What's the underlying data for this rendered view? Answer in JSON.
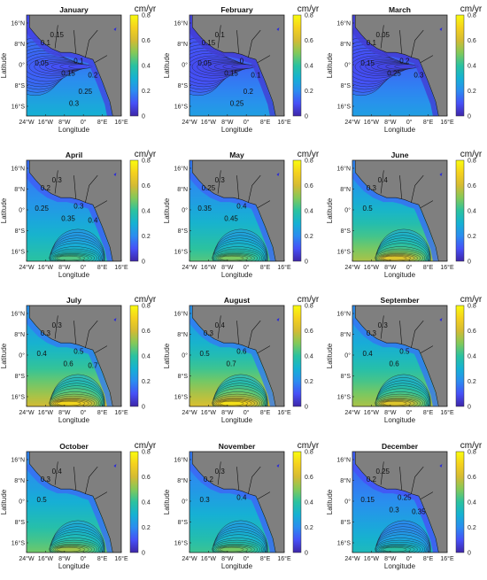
{
  "figure": {
    "colorbar_unit": "cm/yr",
    "colorbar_ticks": [
      "0",
      "0.2",
      "0.4",
      "0.6",
      "0.8"
    ],
    "colorbar_range": [
      0,
      0.8
    ],
    "colormap": [
      "#3e26a8",
      "#4650f7",
      "#2b8cf0",
      "#15b1d3",
      "#2ac2a0",
      "#82c95a",
      "#d4bb33",
      "#f5d11e",
      "#f9fb0e"
    ],
    "land_color": "#7f7f7f",
    "x_ticks": [
      "24°W",
      "16°W",
      "8°W",
      "0°",
      "8°E",
      "16°E"
    ],
    "y_ticks": [
      "16°N",
      "8°N",
      "0°",
      "8°S",
      "16°S"
    ],
    "xlabel": "Longitude",
    "ylabel": "Latitude"
  },
  "chart_data": [
    {
      "type": "heatmap",
      "title": "January",
      "mean_level": 0.16,
      "south_level": 0.3,
      "max_level": 0.35,
      "contour_labels": [
        "0.1",
        "0.15",
        "0.05",
        "0.1",
        "0.15",
        "0.2",
        "0.25",
        "0.3"
      ]
    },
    {
      "type": "heatmap",
      "title": "February",
      "mean_level": 0.12,
      "south_level": 0.25,
      "max_level": 0.3,
      "contour_labels": [
        "0.15",
        "0.1",
        "0.05",
        "0",
        "0.15",
        "0.1",
        "0.2",
        "0.25"
      ]
    },
    {
      "type": "heatmap",
      "title": "March",
      "mean_level": 0.12,
      "south_level": 0.25,
      "max_level": 0.3,
      "contour_labels": [
        "0.1",
        "0.05",
        "0.15",
        "0.2",
        "0.25",
        "0.3"
      ]
    },
    {
      "type": "heatmap",
      "title": "April",
      "mean_level": 0.27,
      "south_level": 0.4,
      "max_level": 0.45,
      "contour_labels": [
        "0.2",
        "0.3",
        "0.25",
        "0.3",
        "0.35",
        "0.4"
      ]
    },
    {
      "type": "heatmap",
      "title": "May",
      "mean_level": 0.3,
      "south_level": 0.45,
      "max_level": 0.5,
      "contour_labels": [
        "0.25",
        "0.3",
        "0.35",
        "0.4",
        "0.45"
      ]
    },
    {
      "type": "heatmap",
      "title": "June",
      "mean_level": 0.33,
      "south_level": 0.55,
      "max_level": 0.65,
      "contour_labels": [
        "0.3",
        "0.4",
        "0.5"
      ]
    },
    {
      "type": "heatmap",
      "title": "July",
      "mean_level": 0.38,
      "south_level": 0.6,
      "max_level": 0.72,
      "contour_labels": [
        "0.3",
        "0.3",
        "0.4",
        "0.5",
        "0.6",
        "0.7"
      ]
    },
    {
      "type": "heatmap",
      "title": "August",
      "mean_level": 0.38,
      "south_level": 0.62,
      "max_level": 0.75,
      "contour_labels": [
        "0.3",
        "0.4",
        "0.5",
        "0.6",
        "0.7"
      ]
    },
    {
      "type": "heatmap",
      "title": "September",
      "mean_level": 0.36,
      "south_level": 0.55,
      "max_level": 0.65,
      "contour_labels": [
        "0.3",
        "0.3",
        "0.4",
        "0.5",
        "0.6"
      ]
    },
    {
      "type": "heatmap",
      "title": "October",
      "mean_level": 0.33,
      "south_level": 0.48,
      "max_level": 0.55,
      "contour_labels": [
        "0.3",
        "0.4",
        "0.5"
      ]
    },
    {
      "type": "heatmap",
      "title": "November",
      "mean_level": 0.3,
      "south_level": 0.42,
      "max_level": 0.5,
      "contour_labels": [
        "0.2",
        "0.3",
        "0.3",
        "0.4"
      ]
    },
    {
      "type": "heatmap",
      "title": "December",
      "mean_level": 0.22,
      "south_level": 0.35,
      "max_level": 0.4,
      "contour_labels": [
        "0.2",
        "0.25",
        "0.15",
        "0.25",
        "0.3",
        "0.35"
      ]
    }
  ]
}
